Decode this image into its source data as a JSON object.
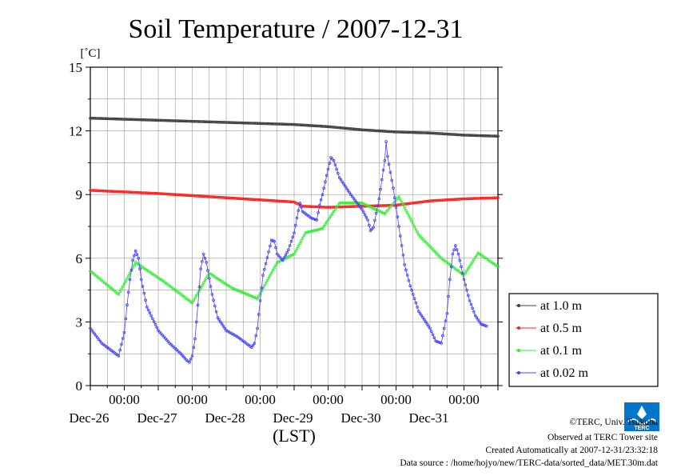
{
  "chart_data": {
    "type": "line",
    "title": "Soil Temperature / 2007-12-31",
    "ylabel": "[˚C]",
    "xlabel": "(LST)",
    "ylim": [
      0,
      15
    ],
    "xlim": [
      0,
      144
    ],
    "y_ticks": [
      0,
      3,
      6,
      9,
      12,
      15
    ],
    "x_ticks": [
      {
        "x": 12,
        "time": "00:00",
        "date": "Dec-26"
      },
      {
        "x": 36,
        "time": "00:00",
        "date": "Dec-27"
      },
      {
        "x": 60,
        "time": "00:00",
        "date": "Dec-28"
      },
      {
        "x": 84,
        "time": "00:00",
        "date": "Dec-29"
      },
      {
        "x": 108,
        "time": "00:00",
        "date": "Dec-30"
      },
      {
        "x": 132,
        "time": "00:00",
        "date": "Dec-31"
      }
    ],
    "grid": true,
    "legend_position": "right",
    "series": [
      {
        "name": "at 1.0 m",
        "color": "#404040",
        "points": [
          [
            0,
            12.6
          ],
          [
            24,
            12.5
          ],
          [
            48,
            12.4
          ],
          [
            60,
            12.35
          ],
          [
            72,
            12.3
          ],
          [
            84,
            12.2
          ],
          [
            96,
            12.05
          ],
          [
            108,
            11.95
          ],
          [
            120,
            11.9
          ],
          [
            132,
            11.8
          ],
          [
            144,
            11.75
          ]
        ]
      },
      {
        "name": "at 0.5 m",
        "color": "#ff2020",
        "points": [
          [
            0,
            9.2
          ],
          [
            24,
            9.05
          ],
          [
            48,
            8.85
          ],
          [
            60,
            8.75
          ],
          [
            72,
            8.65
          ],
          [
            75,
            8.45
          ],
          [
            84,
            8.4
          ],
          [
            96,
            8.45
          ],
          [
            108,
            8.5
          ],
          [
            120,
            8.7
          ],
          [
            132,
            8.8
          ],
          [
            144,
            8.85
          ]
        ]
      },
      {
        "name": "at 0.1 m",
        "color": "#33ee33",
        "points": [
          [
            0,
            5.4
          ],
          [
            10,
            4.3
          ],
          [
            16,
            5.8
          ],
          [
            26,
            4.9
          ],
          [
            36,
            3.9
          ],
          [
            42,
            5.3
          ],
          [
            50,
            4.6
          ],
          [
            59,
            4.1
          ],
          [
            66,
            5.8
          ],
          [
            72,
            6.2
          ],
          [
            76,
            7.2
          ],
          [
            82,
            7.4
          ],
          [
            88,
            8.6
          ],
          [
            96,
            8.6
          ],
          [
            104,
            8.1
          ],
          [
            109,
            8.9
          ],
          [
            116,
            7.1
          ],
          [
            124,
            6.0
          ],
          [
            132,
            5.2
          ],
          [
            137,
            6.25
          ],
          [
            144,
            5.6
          ]
        ]
      },
      {
        "name": "at 0.02 m",
        "color": "#4444ff",
        "points": [
          [
            0,
            2.7
          ],
          [
            4,
            2.0
          ],
          [
            8,
            1.6
          ],
          [
            10,
            1.4
          ],
          [
            12,
            2.5
          ],
          [
            13,
            3.8
          ],
          [
            14,
            5.0
          ],
          [
            15,
            5.9
          ],
          [
            16,
            6.35
          ],
          [
            17,
            6.0
          ],
          [
            18,
            5.0
          ],
          [
            20,
            3.7
          ],
          [
            24,
            2.6
          ],
          [
            28,
            2.0
          ],
          [
            32,
            1.5
          ],
          [
            34,
            1.2
          ],
          [
            35,
            1.1
          ],
          [
            36,
            1.4
          ],
          [
            37,
            2.2
          ],
          [
            38,
            3.8
          ],
          [
            39,
            5.5
          ],
          [
            40,
            6.2
          ],
          [
            41,
            5.8
          ],
          [
            43,
            4.3
          ],
          [
            45,
            3.2
          ],
          [
            48,
            2.6
          ],
          [
            52,
            2.3
          ],
          [
            55,
            2.0
          ],
          [
            57,
            1.8
          ],
          [
            58,
            2.0
          ],
          [
            59,
            2.7
          ],
          [
            60,
            4.0
          ],
          [
            61,
            5.2
          ],
          [
            63,
            6.3
          ],
          [
            64,
            6.85
          ],
          [
            65,
            6.8
          ],
          [
            66,
            6.2
          ],
          [
            68,
            5.9
          ],
          [
            70,
            6.4
          ],
          [
            72,
            7.2
          ],
          [
            74,
            8.6
          ],
          [
            75,
            8.2
          ],
          [
            78,
            7.9
          ],
          [
            80,
            7.8
          ],
          [
            81,
            8.5
          ],
          [
            82,
            9.0
          ],
          [
            84,
            10.2
          ],
          [
            85,
            10.75
          ],
          [
            86,
            10.6
          ],
          [
            88,
            9.8
          ],
          [
            92,
            9.0
          ],
          [
            96,
            8.3
          ],
          [
            98,
            7.8
          ],
          [
            99,
            7.3
          ],
          [
            100,
            7.45
          ],
          [
            102,
            8.8
          ],
          [
            104,
            10.6
          ],
          [
            104.5,
            11.5
          ],
          [
            105,
            10.8
          ],
          [
            107,
            9.3
          ],
          [
            109,
            7.5
          ],
          [
            111,
            5.7
          ],
          [
            113,
            4.7
          ],
          [
            116,
            3.5
          ],
          [
            120,
            2.7
          ],
          [
            122,
            2.1
          ],
          [
            124,
            2.0
          ],
          [
            126,
            3.4
          ],
          [
            127,
            5.0
          ],
          [
            128,
            6.2
          ],
          [
            129,
            6.6
          ],
          [
            130,
            6.2
          ],
          [
            132,
            5.0
          ],
          [
            134,
            4.0
          ],
          [
            136,
            3.3
          ],
          [
            138,
            2.9
          ],
          [
            140,
            2.8
          ]
        ]
      }
    ]
  },
  "footer": {
    "copyright": "©TERC, Univ. Tsukuba",
    "observed": "Observed at TERC Tower site",
    "created": "Created Automatically at 2007-12-31/23:32:18",
    "source": "Data source : /home/hojyo/new/TERC-data/sorted_data/MET.30m.dat"
  },
  "logo": {
    "text": "TERC",
    "color": "#0077cc"
  }
}
